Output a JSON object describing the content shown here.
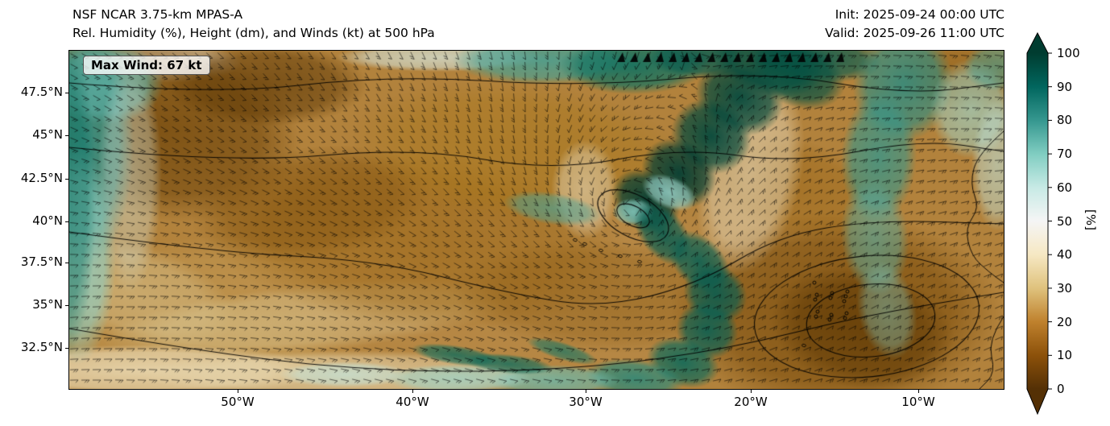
{
  "figure": {
    "title_line1": "NSF NCAR 3.75-km MPAS-A",
    "title_line2": "Rel. Humidity (%), Height (dm), and Winds (kt) at 500 hPa",
    "init_time": "Init: 2025-09-24 00:00 UTC",
    "valid_time": "Valid: 2025-09-26 11:00 UTC"
  },
  "map": {
    "annotation_max_wind": "Max Wind: 67 kt",
    "y_tick_labels": [
      "47.5°N",
      "45°N",
      "42.5°N",
      "40°N",
      "37.5°N",
      "35°N",
      "32.5°N"
    ],
    "x_tick_labels": [
      "50°W",
      "40°W",
      "30°W",
      "20°W",
      "10°W"
    ]
  },
  "colorbar": {
    "tick_labels": [
      "100",
      "90",
      "80",
      "70",
      "60",
      "50",
      "40",
      "30",
      "20",
      "10",
      "0"
    ],
    "axis_label": "[%]"
  },
  "chart_data": {
    "type": "heatmap",
    "title": "NSF NCAR 3.75-km MPAS-A",
    "subtitle": "Rel. Humidity (%), Height (dm), and Winds (kt) at 500 hPa",
    "variable": "Relative humidity at 500 hPa",
    "units": "%",
    "level": "500 hPa",
    "init_time": "2025-09-24 00:00 UTC",
    "valid_time": "2025-09-26 11:00 UTC",
    "annotations": [
      {
        "text": "Max Wind: 67 kt",
        "position": "top-left"
      }
    ],
    "x_axis": {
      "ticks": [
        "50°W",
        "40°W",
        "30°W",
        "20°W",
        "10°W"
      ],
      "approx_range_deg_west": [
        60,
        5
      ]
    },
    "y_axis": {
      "ticks": [
        "47.5°N",
        "45°N",
        "42.5°N",
        "40°N",
        "37.5°N",
        "35°N",
        "32.5°N"
      ],
      "approx_range_deg_north": [
        30,
        50
      ]
    },
    "colorbar": {
      "label": "[%]",
      "ticks": [
        0,
        10,
        20,
        30,
        40,
        50,
        60,
        70,
        80,
        90,
        100
      ],
      "range": [
        0,
        100
      ],
      "extend": "both",
      "position": "right"
    },
    "colormap_stops": [
      {
        "value": 0,
        "color": "#543005"
      },
      {
        "value": 10,
        "color": "#8c510a"
      },
      {
        "value": 20,
        "color": "#bf812d"
      },
      {
        "value": 30,
        "color": "#dfc27d"
      },
      {
        "value": 40,
        "color": "#f6e8c3"
      },
      {
        "value": 50,
        "color": "#f5f5f5"
      },
      {
        "value": 60,
        "color": "#c7eae5"
      },
      {
        "value": 70,
        "color": "#80cdc1"
      },
      {
        "value": 80,
        "color": "#35978f"
      },
      {
        "value": 90,
        "color": "#01665e"
      },
      {
        "value": 100,
        "color": "#003c30"
      }
    ],
    "overlays": [
      "500-hPa geopotential height contours (dm)",
      "wind barbs (kt)",
      "coastlines"
    ],
    "grid": false,
    "legend_position": "right-colorbar"
  }
}
